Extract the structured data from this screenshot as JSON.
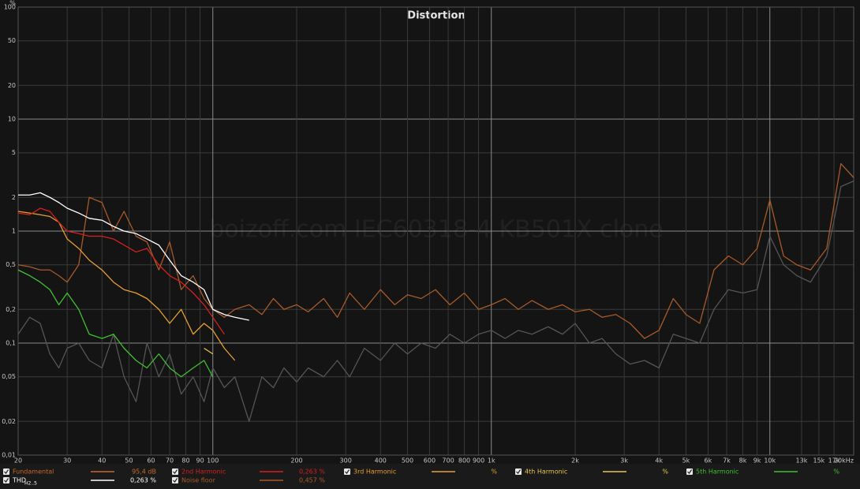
{
  "chart_data": {
    "type": "line",
    "title": "Distortion",
    "y_unit": "%",
    "watermark": "boizoff.com IEC60318-4 KB501X clone",
    "xscale": "log",
    "yscale": "log",
    "grid": true,
    "xlim": [
      20,
      20000
    ],
    "ylim": [
      0.01,
      100
    ],
    "xticks": [
      20,
      30,
      40,
      50,
      60,
      70,
      80,
      90,
      100,
      200,
      300,
      400,
      500,
      600,
      700,
      800,
      900,
      {
        "value": 1000,
        "label": "1k"
      },
      {
        "value": 2000,
        "label": "2k"
      },
      {
        "value": 3000,
        "label": "3k"
      },
      {
        "value": 4000,
        "label": "4k"
      },
      {
        "value": 5000,
        "label": "5k"
      },
      {
        "value": 6000,
        "label": "6k"
      },
      {
        "value": 7000,
        "label": "7k"
      },
      {
        "value": 8000,
        "label": "8k"
      },
      {
        "value": 9000,
        "label": "9k"
      },
      {
        "value": 10000,
        "label": "10k"
      },
      {
        "value": 13000,
        "label": "13k"
      },
      {
        "value": 15000,
        "label": "15k"
      },
      {
        "value": 17000,
        "label": "17k"
      },
      {
        "value": 20000,
        "label": "20kHz"
      }
    ],
    "yticks": [
      100,
      50,
      20,
      10,
      5,
      2,
      1,
      {
        "value": 0.5,
        "label": "0,5"
      },
      {
        "value": 0.2,
        "label": "0,2"
      },
      {
        "value": 0.1,
        "label": "0,1"
      },
      {
        "value": 0.05,
        "label": "0,05"
      },
      {
        "value": 0.02,
        "label": "0,02"
      },
      {
        "value": 0.01,
        "label": "0,01"
      }
    ],
    "x": [
      20,
      22,
      24,
      26,
      28,
      30,
      33,
      36,
      40,
      44,
      48,
      53,
      58,
      64,
      70,
      77,
      85,
      93,
      100,
      110,
      120,
      135,
      150,
      165,
      180,
      200,
      220,
      250,
      280,
      310,
      350,
      400,
      450,
      500,
      560,
      630,
      710,
      800,
      900,
      1000,
      1120,
      1250,
      1400,
      1600,
      1800,
      2000,
      2250,
      2500,
      2800,
      3150,
      3550,
      4000,
      4500,
      5000,
      5600,
      6300,
      7100,
      8000,
      9000,
      10000,
      11200,
      12500,
      14000,
      16000,
      18000,
      20000
    ],
    "series": [
      {
        "name": "Fundamental",
        "color": "#c8692a",
        "reading": "95,4 dB",
        "values": [
          null,
          null,
          null,
          null,
          null,
          null,
          null,
          null,
          null,
          null,
          null,
          null,
          null,
          null,
          null,
          null,
          null,
          null,
          null,
          null,
          null,
          null,
          null,
          null,
          null,
          null,
          null,
          null,
          null,
          null,
          null,
          null,
          null,
          null,
          null,
          null,
          null,
          null,
          null,
          null,
          null,
          null,
          null,
          null,
          null,
          null,
          null,
          null,
          null,
          null,
          null,
          null,
          null,
          null,
          null,
          null,
          null,
          null,
          null,
          null,
          null,
          null,
          null,
          null,
          null,
          null
        ]
      },
      {
        "name": "2nd Harmonic",
        "color": "#d42020",
        "reading": "0,263 %",
        "values": [
          1.45,
          1.4,
          1.6,
          1.5,
          1.2,
          1.0,
          0.95,
          0.9,
          0.9,
          0.85,
          0.75,
          0.65,
          0.7,
          0.5,
          0.4,
          0.35,
          0.28,
          0.22,
          0.17,
          0.12,
          null,
          null,
          null,
          null,
          null,
          null,
          null,
          null,
          null,
          null,
          null,
          null,
          null,
          null,
          null,
          null,
          null,
          null,
          null,
          null,
          null,
          null,
          null,
          null,
          null,
          null,
          null,
          null,
          null,
          null,
          null,
          null,
          null,
          null,
          null,
          null,
          null,
          null,
          null,
          null,
          null,
          null,
          null,
          null,
          null,
          null
        ]
      },
      {
        "name": "3rd Harmonic",
        "color": "#e8a030",
        "reading": "%",
        "values": [
          1.5,
          1.45,
          1.4,
          1.35,
          1.2,
          0.85,
          0.7,
          0.55,
          0.45,
          0.35,
          0.3,
          0.28,
          0.25,
          0.2,
          0.15,
          0.2,
          0.12,
          0.15,
          0.13,
          0.09,
          0.07,
          null,
          null,
          null,
          null,
          null,
          null,
          null,
          null,
          null,
          null,
          null,
          null,
          null,
          null,
          null,
          null,
          null,
          null,
          null,
          null,
          null,
          null,
          null,
          null,
          null,
          null,
          null,
          null,
          null,
          null,
          null,
          null,
          null,
          null,
          null,
          null,
          null,
          null,
          null,
          null,
          null,
          null,
          null,
          null,
          null
        ]
      },
      {
        "name": "4th Harmonic",
        "color": "#e8c848",
        "reading": "%",
        "values": [
          null,
          null,
          null,
          null,
          null,
          null,
          null,
          null,
          null,
          null,
          null,
          null,
          null,
          null,
          null,
          null,
          null,
          0.09,
          0.08,
          null,
          null,
          null,
          null,
          null,
          null,
          null,
          null,
          null,
          null,
          null,
          null,
          null,
          null,
          null,
          null,
          null,
          null,
          null,
          null,
          null,
          null,
          null,
          null,
          null,
          null,
          null,
          null,
          null,
          null,
          null,
          null,
          null,
          null,
          null,
          null,
          null,
          null,
          null,
          null,
          null,
          null,
          null,
          null,
          null,
          null,
          null
        ]
      },
      {
        "name": "5th Harmonic",
        "color": "#40c030",
        "reading": "%",
        "values": [
          0.45,
          0.4,
          0.35,
          0.3,
          0.22,
          0.28,
          0.2,
          0.12,
          0.11,
          0.12,
          0.09,
          0.07,
          0.06,
          0.08,
          0.06,
          0.05,
          0.06,
          0.07,
          0.05,
          null,
          null,
          null,
          null,
          null,
          null,
          null,
          null,
          null,
          null,
          null,
          null,
          null,
          null,
          null,
          null,
          null,
          null,
          null,
          null,
          null,
          null,
          null,
          null,
          null,
          null,
          null,
          null,
          null,
          null,
          null,
          null,
          null,
          null,
          null,
          null,
          null,
          null,
          null,
          null,
          null,
          null,
          null,
          null,
          null,
          null,
          null
        ]
      },
      {
        "name": "THD",
        "name_subscript": "H2..5",
        "color": "#ffffff",
        "reading": "0,263 %",
        "values": [
          2.1,
          2.1,
          2.2,
          2.0,
          1.8,
          1.6,
          1.45,
          1.3,
          1.25,
          1.1,
          1.0,
          0.95,
          0.85,
          0.75,
          0.55,
          0.4,
          0.35,
          0.3,
          0.2,
          0.18,
          0.17,
          0.16,
          null,
          null,
          null,
          null,
          null,
          null,
          null,
          null,
          null,
          null,
          null,
          null,
          null,
          null,
          null,
          null,
          null,
          null,
          null,
          null,
          null,
          null,
          null,
          null,
          null,
          null,
          null,
          null,
          null,
          null,
          null,
          null,
          null,
          null,
          null,
          null,
          null,
          null,
          null,
          null,
          null,
          null,
          null,
          null
        ]
      },
      {
        "name": "Noise floor",
        "color": "#a85a28",
        "reading": "0,457 %",
        "values": [
          0.5,
          0.48,
          0.45,
          0.45,
          0.4,
          0.35,
          0.5,
          2.0,
          1.8,
          1.0,
          1.5,
          0.9,
          0.8,
          0.45,
          0.8,
          0.3,
          0.4,
          0.25,
          0.2,
          0.17,
          0.2,
          0.22,
          0.18,
          0.25,
          0.2,
          0.22,
          0.19,
          0.25,
          0.17,
          0.28,
          0.2,
          0.3,
          0.22,
          0.27,
          0.25,
          0.3,
          0.22,
          0.28,
          0.2,
          0.22,
          0.25,
          0.2,
          0.24,
          0.2,
          0.22,
          0.19,
          0.2,
          0.17,
          0.18,
          0.15,
          0.11,
          0.13,
          0.25,
          0.18,
          0.15,
          0.45,
          0.6,
          0.5,
          0.7,
          1.9,
          0.6,
          0.5,
          0.45,
          0.7,
          4.0,
          3.0
        ]
      },
      {
        "color": "#555555",
        "values": [
          0.12,
          0.17,
          0.15,
          0.08,
          0.06,
          0.09,
          0.1,
          0.07,
          0.06,
          0.12,
          0.05,
          0.03,
          0.1,
          0.05,
          0.08,
          0.035,
          0.05,
          0.03,
          0.06,
          0.04,
          0.05,
          0.02,
          0.05,
          0.04,
          0.06,
          0.045,
          0.06,
          0.05,
          0.07,
          0.05,
          0.09,
          0.07,
          0.1,
          0.08,
          0.1,
          0.09,
          0.12,
          0.1,
          0.12,
          0.13,
          0.11,
          0.13,
          0.12,
          0.14,
          0.12,
          0.15,
          0.1,
          0.11,
          0.08,
          0.065,
          0.07,
          0.06,
          0.12,
          0.11,
          0.1,
          0.2,
          0.3,
          0.28,
          0.3,
          0.9,
          0.5,
          0.4,
          0.35,
          0.6,
          2.5,
          2.8
        ]
      }
    ]
  }
}
